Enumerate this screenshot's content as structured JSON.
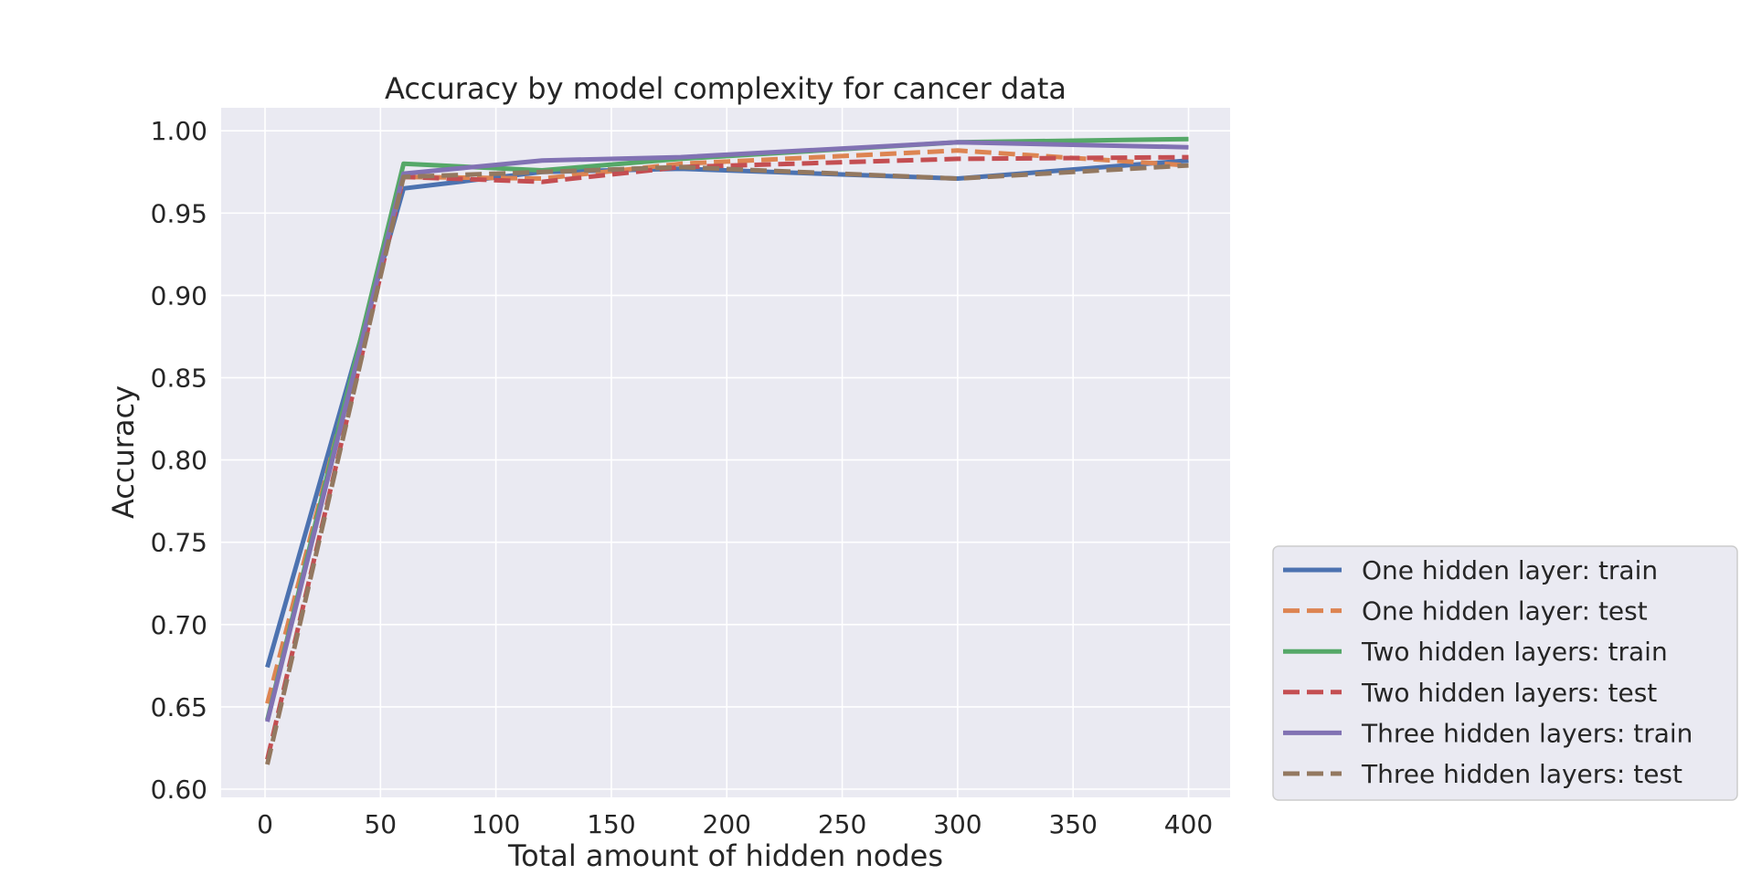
{
  "chart_data": {
    "type": "line",
    "title": "Accuracy by model complexity for cancer data",
    "xlabel": "Total amount of hidden nodes",
    "ylabel": "Accuracy",
    "xlim": [
      -19,
      418
    ],
    "ylim": [
      0.595,
      1.014
    ],
    "xticks": [
      0,
      50,
      100,
      150,
      200,
      250,
      300,
      350,
      400
    ],
    "xtick_labels": [
      "0",
      "50",
      "100",
      "150",
      "200",
      "250",
      "300",
      "350",
      "400"
    ],
    "yticks": [
      0.6,
      0.65,
      0.7,
      0.75,
      0.8,
      0.85,
      0.9,
      0.95,
      1.0
    ],
    "ytick_labels": [
      "0.60",
      "0.65",
      "0.70",
      "0.75",
      "0.80",
      "0.85",
      "0.90",
      "0.95",
      "1.00"
    ],
    "grid": true,
    "legend_position": "outside lower right",
    "series": [
      {
        "name": "One hidden layer: train",
        "color": "#4c72b0",
        "dash": "solid",
        "x": [
          1,
          60,
          120,
          180,
          300,
          400
        ],
        "y": [
          0.674,
          0.965,
          0.975,
          0.977,
          0.971,
          0.982
        ]
      },
      {
        "name": "One hidden layer: test",
        "color": "#dd8452",
        "dash": "dashed",
        "x": [
          1,
          60,
          120,
          180,
          300,
          400
        ],
        "y": [
          0.652,
          0.972,
          0.971,
          0.98,
          0.988,
          0.979
        ]
      },
      {
        "name": "Two hidden layers: train",
        "color": "#55a868",
        "dash": "solid",
        "x": [
          1,
          60,
          120,
          180,
          300,
          400
        ],
        "y": [
          0.642,
          0.98,
          0.976,
          0.983,
          0.993,
          0.995
        ]
      },
      {
        "name": "Two hidden layers: test",
        "color": "#c44e52",
        "dash": "dashed",
        "x": [
          1,
          60,
          120,
          180,
          300,
          400
        ],
        "y": [
          0.618,
          0.972,
          0.969,
          0.978,
          0.983,
          0.984
        ]
      },
      {
        "name": "Three hidden layers: train",
        "color": "#8172b3",
        "dash": "solid",
        "x": [
          1,
          60,
          120,
          180,
          300,
          400
        ],
        "y": [
          0.641,
          0.974,
          0.982,
          0.984,
          0.993,
          0.99
        ]
      },
      {
        "name": "Three hidden layers: test",
        "color": "#937860",
        "dash": "dashed",
        "x": [
          1,
          60,
          120,
          180,
          300,
          400
        ],
        "y": [
          0.615,
          0.972,
          0.975,
          0.978,
          0.971,
          0.979
        ]
      }
    ]
  }
}
